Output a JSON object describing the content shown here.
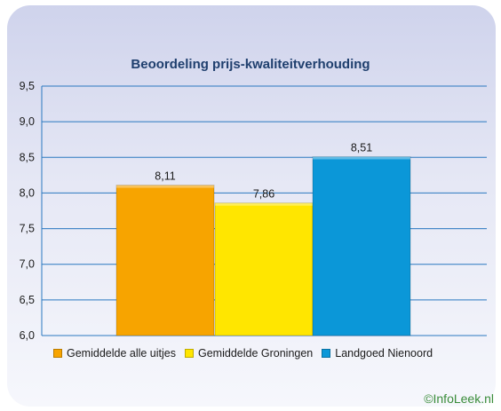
{
  "chart_data": {
    "type": "bar",
    "title": "Beoordeling prijs-kwaliteitverhouding",
    "categories": [
      "Gemiddelde alle uitjes",
      "Gemiddelde Groningen",
      "Landgoed Nienoord"
    ],
    "values": [
      8.11,
      7.86,
      8.51
    ],
    "value_labels": [
      "8,11",
      "7,86",
      "8,51"
    ],
    "colors": [
      "#f7a400",
      "#ffe600",
      "#0b97d8"
    ],
    "ylim": [
      6.0,
      9.5
    ],
    "yticks": [
      6.0,
      6.5,
      7.0,
      7.5,
      8.0,
      8.5,
      9.0,
      9.5
    ],
    "ytick_labels": [
      "6,0",
      "6,5",
      "7,0",
      "7,5",
      "8,0",
      "8,5",
      "9,0",
      "9,5"
    ],
    "grid": true,
    "legend_position": "bottom",
    "xlabel": "",
    "ylabel": ""
  },
  "watermark": "©InfoLeek.nl"
}
